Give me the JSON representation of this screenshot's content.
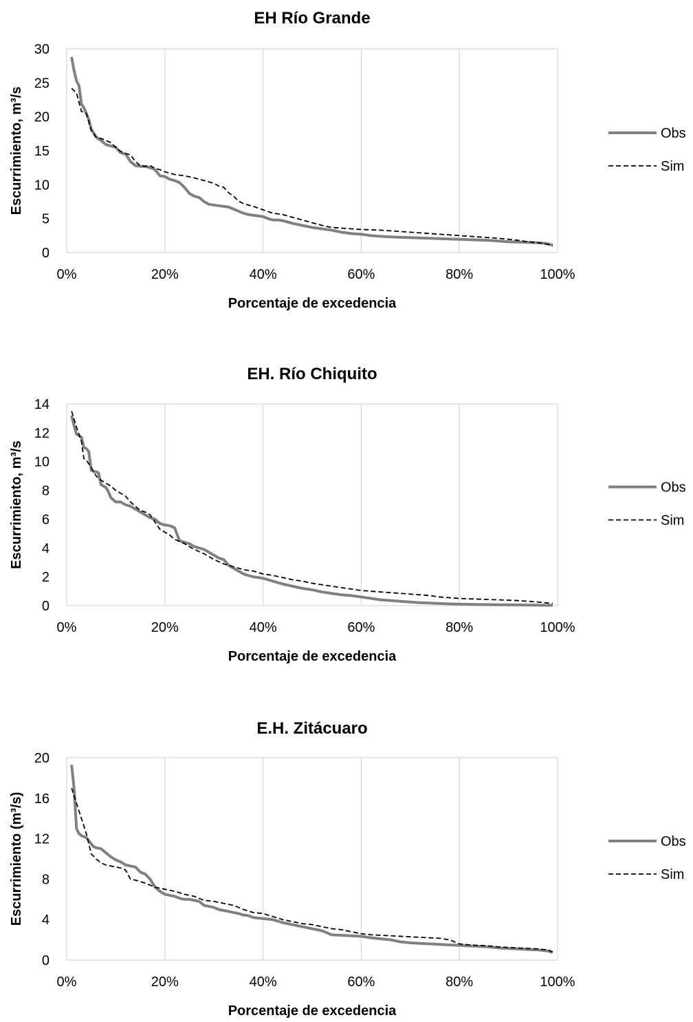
{
  "chart_data": [
    {
      "type": "line",
      "title": "EH Río Grande",
      "xlabel": "Porcentaje de excedencia",
      "ylabel": "Escurrimiento, m³/s",
      "xlim": [
        0,
        100
      ],
      "ylim": [
        0,
        30
      ],
      "xticks": [
        "0%",
        "20%",
        "40%",
        "60%",
        "80%",
        "100%"
      ],
      "yticks": [
        "0",
        "5",
        "10",
        "15",
        "20",
        "25",
        "30"
      ],
      "grid": "vertical",
      "legend": "right",
      "series": [
        {
          "name": "Obs",
          "color": "#808080",
          "style": "solid",
          "x": [
            1,
            1.5,
            2,
            2.5,
            3,
            3.5,
            4,
            4.5,
            5,
            6,
            7,
            8,
            9,
            10,
            11,
            12,
            13,
            14,
            15,
            16,
            17,
            18,
            19,
            20,
            21,
            22,
            23,
            24,
            25,
            26,
            27,
            28,
            29,
            30,
            31,
            32,
            33,
            34,
            35,
            36,
            37,
            38,
            39,
            40,
            41,
            42,
            43,
            44,
            45,
            46,
            48,
            50,
            52,
            54,
            56,
            58,
            60,
            62,
            64,
            66,
            68,
            70,
            72,
            74,
            76,
            78,
            80,
            82,
            84,
            86,
            88,
            90,
            92,
            94,
            96,
            97,
            98,
            99
          ],
          "y": [
            28.8,
            26.8,
            25.3,
            24.6,
            21.9,
            21.3,
            20.5,
            19.6,
            18.2,
            17.0,
            16.5,
            15.9,
            15.7,
            15.5,
            14.7,
            14.5,
            13.4,
            12.8,
            12.7,
            12.7,
            12.5,
            12.2,
            11.3,
            11.2,
            10.8,
            10.6,
            10.3,
            9.6,
            8.7,
            8.3,
            8.1,
            7.5,
            7.1,
            7.0,
            6.9,
            6.8,
            6.7,
            6.4,
            6.1,
            5.8,
            5.6,
            5.5,
            5.4,
            5.3,
            5.0,
            4.8,
            4.8,
            4.7,
            4.5,
            4.3,
            4.0,
            3.7,
            3.5,
            3.3,
            3.0,
            2.8,
            2.7,
            2.5,
            2.4,
            2.3,
            2.25,
            2.2,
            2.15,
            2.1,
            2.05,
            2.0,
            1.95,
            1.9,
            1.85,
            1.8,
            1.7,
            1.6,
            1.55,
            1.5,
            1.45,
            1.4,
            1.3,
            1.1
          ]
        },
        {
          "name": "Sim",
          "color": "#000000",
          "style": "dashed",
          "x": [
            1,
            2,
            3,
            4,
            5,
            6,
            7,
            8,
            9,
            10,
            11,
            12,
            13,
            14,
            15,
            16,
            17,
            18,
            19,
            20,
            22,
            24,
            26,
            28,
            30,
            31,
            32,
            33,
            34,
            35,
            36,
            38,
            40,
            42,
            44,
            46,
            48,
            50,
            52,
            54,
            56,
            58,
            60,
            62,
            64,
            66,
            68,
            70,
            72,
            74,
            76,
            78,
            80,
            82,
            84,
            86,
            88,
            90,
            92,
            94,
            96,
            98,
            99
          ],
          "y": [
            24.2,
            23.5,
            20.8,
            20.5,
            18.0,
            17.0,
            16.8,
            16.5,
            16.2,
            15.5,
            14.9,
            14.6,
            14.4,
            13.4,
            12.8,
            12.7,
            12.8,
            12.4,
            12.2,
            11.9,
            11.5,
            11.3,
            11.0,
            10.6,
            10.2,
            9.8,
            9.6,
            8.8,
            8.3,
            7.6,
            7.2,
            6.8,
            6.3,
            5.8,
            5.6,
            5.2,
            4.8,
            4.4,
            4.0,
            3.7,
            3.6,
            3.5,
            3.4,
            3.35,
            3.3,
            3.2,
            3.1,
            3.0,
            2.9,
            2.8,
            2.7,
            2.6,
            2.5,
            2.4,
            2.3,
            2.2,
            2.1,
            1.95,
            1.8,
            1.6,
            1.45,
            1.2,
            1.0
          ]
        }
      ]
    },
    {
      "type": "line",
      "title": "EH. Río Chiquito",
      "xlabel": "Porcentaje de excedencia",
      "ylabel": "Escurrimiento, m³/s",
      "xlim": [
        0,
        100
      ],
      "ylim": [
        0,
        14
      ],
      "xticks": [
        "0%",
        "20%",
        "40%",
        "60%",
        "80%",
        "100%"
      ],
      "yticks": [
        "0",
        "2",
        "4",
        "6",
        "8",
        "10",
        "12",
        "14"
      ],
      "grid": "vertical",
      "legend": "right",
      "series": [
        {
          "name": "Obs",
          "color": "#808080",
          "style": "solid",
          "x": [
            1,
            1.5,
            2,
            2.5,
            3,
            3.5,
            4,
            4.5,
            5,
            5.5,
            6,
            6.5,
            7,
            7.5,
            8,
            8.5,
            9,
            10,
            11,
            12,
            13,
            14,
            15,
            16,
            17,
            18,
            19,
            20,
            21,
            22,
            23,
            24,
            25,
            26,
            27,
            28,
            29,
            30,
            31,
            32,
            33,
            34,
            35,
            36,
            37,
            38,
            39,
            40,
            41,
            42,
            44,
            46,
            48,
            50,
            52,
            54,
            56,
            58,
            60,
            62,
            64,
            66,
            68,
            70,
            72,
            74,
            76,
            78,
            80,
            84,
            88,
            92,
            96,
            99
          ],
          "y": [
            13.2,
            12.5,
            11.9,
            11.8,
            11.7,
            11.0,
            10.9,
            10.7,
            9.4,
            9.3,
            9.3,
            9.2,
            8.4,
            8.3,
            8.2,
            7.9,
            7.5,
            7.2,
            7.2,
            7.0,
            6.9,
            6.7,
            6.5,
            6.3,
            6.1,
            6.0,
            5.7,
            5.6,
            5.55,
            5.4,
            4.5,
            4.4,
            4.3,
            4.1,
            4.0,
            3.9,
            3.7,
            3.5,
            3.3,
            3.2,
            2.8,
            2.6,
            2.4,
            2.2,
            2.1,
            2.0,
            1.95,
            1.9,
            1.8,
            1.7,
            1.5,
            1.35,
            1.2,
            1.1,
            0.95,
            0.85,
            0.75,
            0.7,
            0.6,
            0.5,
            0.4,
            0.35,
            0.3,
            0.25,
            0.2,
            0.18,
            0.15,
            0.12,
            0.1,
            0.08,
            0.06,
            0.05,
            0.03,
            0.02
          ]
        },
        {
          "name": "Sim",
          "color": "#000000",
          "style": "dashed",
          "x": [
            1,
            2,
            3,
            3.5,
            4,
            5,
            6,
            7,
            8,
            9,
            10,
            11,
            12,
            13,
            14,
            15,
            16,
            17,
            18,
            19,
            20,
            21,
            22,
            24,
            26,
            28,
            30,
            32,
            34,
            36,
            38,
            40,
            42,
            44,
            46,
            48,
            50,
            52,
            54,
            56,
            58,
            60,
            62,
            64,
            66,
            68,
            70,
            72,
            74,
            76,
            78,
            80,
            84,
            88,
            92,
            96,
            99
          ],
          "y": [
            13.5,
            12.4,
            11.4,
            10.2,
            10.1,
            9.6,
            9.0,
            8.7,
            8.5,
            8.3,
            8.0,
            7.8,
            7.6,
            7.2,
            6.9,
            6.6,
            6.5,
            6.3,
            5.8,
            5.3,
            5.1,
            4.9,
            4.6,
            4.3,
            3.9,
            3.6,
            3.2,
            2.9,
            2.7,
            2.5,
            2.4,
            2.2,
            2.1,
            1.95,
            1.8,
            1.7,
            1.55,
            1.45,
            1.35,
            1.25,
            1.15,
            1.05,
            1.0,
            0.95,
            0.9,
            0.85,
            0.8,
            0.75,
            0.7,
            0.6,
            0.55,
            0.5,
            0.45,
            0.4,
            0.35,
            0.25,
            0.15
          ]
        }
      ]
    },
    {
      "type": "line",
      "title": "E.H. Zitácuaro",
      "xlabel": "Porcentaje de excedencia",
      "ylabel": "Escurrimiento (m³/s)",
      "xlim": [
        0,
        100
      ],
      "ylim": [
        0,
        20
      ],
      "xticks": [
        "0%",
        "20%",
        "40%",
        "60%",
        "80%",
        "100%"
      ],
      "yticks": [
        "0",
        "4",
        "8",
        "12",
        "16",
        "20"
      ],
      "grid": "vertical",
      "legend": "right",
      "series": [
        {
          "name": "Obs",
          "color": "#808080",
          "style": "solid",
          "x": [
            1,
            1.5,
            2,
            2.5,
            3,
            3.5,
            4,
            4.5,
            5,
            5.5,
            6,
            7,
            8,
            9,
            10,
            11,
            12,
            13,
            14,
            15,
            16,
            17,
            18,
            19,
            20,
            21,
            22,
            23,
            24,
            25,
            26,
            27,
            28,
            29,
            30,
            31,
            32,
            33,
            34,
            35,
            36,
            37,
            38,
            40,
            42,
            44,
            46,
            48,
            50,
            52,
            54,
            56,
            58,
            60,
            62,
            64,
            66,
            68,
            70,
            72,
            74,
            76,
            78,
            80,
            82,
            84,
            86,
            88,
            90,
            92,
            94,
            96,
            98,
            99
          ],
          "y": [
            19.3,
            17.0,
            13.0,
            12.5,
            12.3,
            12.2,
            12.1,
            11.8,
            11.5,
            11.2,
            11.1,
            11.0,
            10.6,
            10.2,
            9.9,
            9.7,
            9.4,
            9.3,
            9.2,
            8.7,
            8.5,
            8.0,
            7.2,
            6.8,
            6.5,
            6.4,
            6.3,
            6.1,
            6.0,
            6.0,
            5.9,
            5.8,
            5.4,
            5.3,
            5.2,
            5.0,
            4.9,
            4.8,
            4.7,
            4.6,
            4.45,
            4.4,
            4.2,
            4.1,
            4.0,
            3.7,
            3.5,
            3.3,
            3.1,
            2.9,
            2.5,
            2.45,
            2.4,
            2.35,
            2.2,
            2.1,
            2.0,
            1.8,
            1.7,
            1.65,
            1.6,
            1.55,
            1.5,
            1.45,
            1.4,
            1.35,
            1.3,
            1.2,
            1.15,
            1.1,
            1.05,
            1.0,
            0.9,
            0.75
          ]
        },
        {
          "name": "Sim",
          "color": "#000000",
          "style": "dashed",
          "x": [
            1,
            2,
            3,
            4,
            4.5,
            5,
            6,
            7,
            8,
            9,
            10,
            11,
            12,
            13,
            14,
            16,
            18,
            20,
            22,
            24,
            26,
            28,
            30,
            32,
            34,
            36,
            38,
            40,
            42,
            44,
            46,
            48,
            50,
            52,
            54,
            56,
            58,
            60,
            62,
            64,
            66,
            68,
            70,
            72,
            74,
            76,
            78,
            80,
            82,
            84,
            86,
            88,
            90,
            92,
            94,
            96,
            98,
            99
          ],
          "y": [
            17.0,
            15.5,
            14.0,
            12.5,
            11.5,
            10.5,
            10.0,
            9.6,
            9.4,
            9.3,
            9.2,
            9.1,
            8.9,
            8.0,
            7.9,
            7.6,
            7.2,
            7.0,
            6.8,
            6.5,
            6.3,
            5.9,
            5.8,
            5.6,
            5.4,
            5.0,
            4.7,
            4.6,
            4.3,
            4.0,
            3.8,
            3.6,
            3.5,
            3.3,
            3.1,
            3.0,
            2.8,
            2.6,
            2.5,
            2.45,
            2.4,
            2.35,
            2.3,
            2.25,
            2.2,
            2.15,
            2.0,
            1.6,
            1.5,
            1.45,
            1.4,
            1.3,
            1.25,
            1.2,
            1.15,
            1.1,
            1.0,
            0.8
          ]
        }
      ]
    }
  ]
}
